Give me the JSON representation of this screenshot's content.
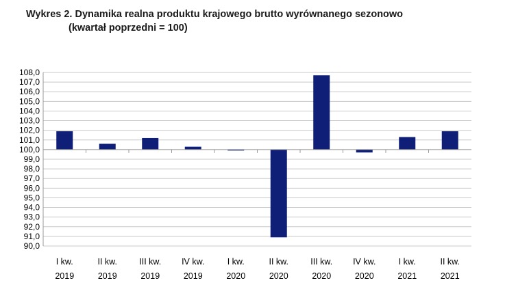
{
  "title": "Wykres 2. Dynamika realna produktu krajowego brutto wyrównanego sezonowo",
  "subtitle": "(kwartał poprzedni = 100)",
  "chart_data": {
    "type": "bar",
    "title": "Wykres 2. Dynamika realna produktu krajowego brutto wyrównanego sezonowo",
    "subtitle": "(kwartał poprzedni = 100)",
    "categories": [
      [
        "I kw.",
        "2019"
      ],
      [
        "II kw.",
        "2019"
      ],
      [
        "III kw.",
        "2019"
      ],
      [
        "IV kw.",
        "2019"
      ],
      [
        "I kw.",
        "2020"
      ],
      [
        "II kw.",
        "2020"
      ],
      [
        "III kw.",
        "2020"
      ],
      [
        "IV kw.",
        "2020"
      ],
      [
        "I kw.",
        "2021"
      ],
      [
        "II kw.",
        "2021"
      ]
    ],
    "values": [
      101.9,
      100.6,
      101.2,
      100.3,
      99.9,
      90.9,
      107.7,
      99.7,
      101.3,
      101.9
    ],
    "baseline": 100.0,
    "ylim": [
      90.0,
      108.0
    ],
    "ytick_step": 1.0,
    "yticks": [
      "108,0",
      "107,0",
      "106,0",
      "105,0",
      "104,0",
      "103,0",
      "102,0",
      "101,0",
      "100,0",
      "99,0",
      "98,0",
      "97,0",
      "96,0",
      "95,0",
      "94,0",
      "93,0",
      "92,0",
      "91,0",
      "90,0"
    ],
    "grid": true,
    "bar_color": "#0f1f78",
    "grid_color": "#c8c8c8",
    "xlabel": "",
    "ylabel": ""
  }
}
